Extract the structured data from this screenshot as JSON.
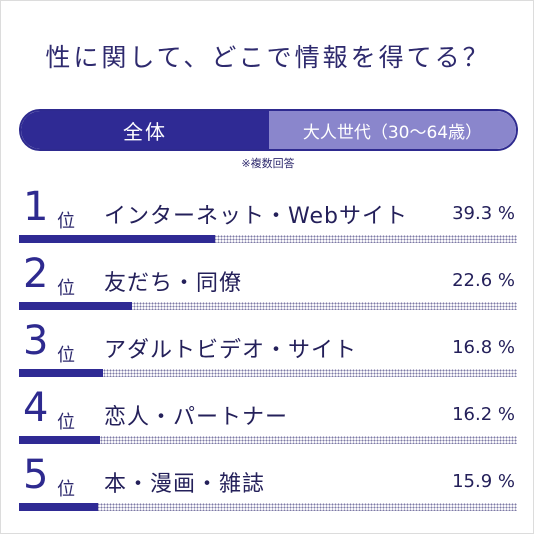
{
  "title": "性に関して、どこで情報を得てる？",
  "tabs": [
    {
      "label": "全体",
      "active": true
    },
    {
      "label": "大人世代（30～64歳）",
      "active": false
    }
  ],
  "note": "※複数回答",
  "colors": {
    "accent": "#2f2a94",
    "inactive_tab": "#8a86cc",
    "text": "#24205a"
  },
  "chart_data": {
    "type": "bar",
    "orientation": "horizontal",
    "ranks": [
      "1",
      "2",
      "3",
      "4",
      "5"
    ],
    "rank_suffix": "位",
    "categories": [
      "インターネット・Webサイト",
      "友だち・同僚",
      "アダルトビデオ・サイト",
      "恋人・パートナー",
      "本・漫画・雑誌"
    ],
    "values": [
      39.3,
      22.6,
      16.8,
      16.2,
      15.9
    ],
    "value_labels": [
      "39.3 %",
      "22.6 %",
      "16.8 %",
      "16.2 %",
      "15.9 %"
    ],
    "xlim": [
      0,
      100
    ],
    "title": "性に関して、どこで情報を得てる？",
    "xlabel": "",
    "ylabel": ""
  }
}
